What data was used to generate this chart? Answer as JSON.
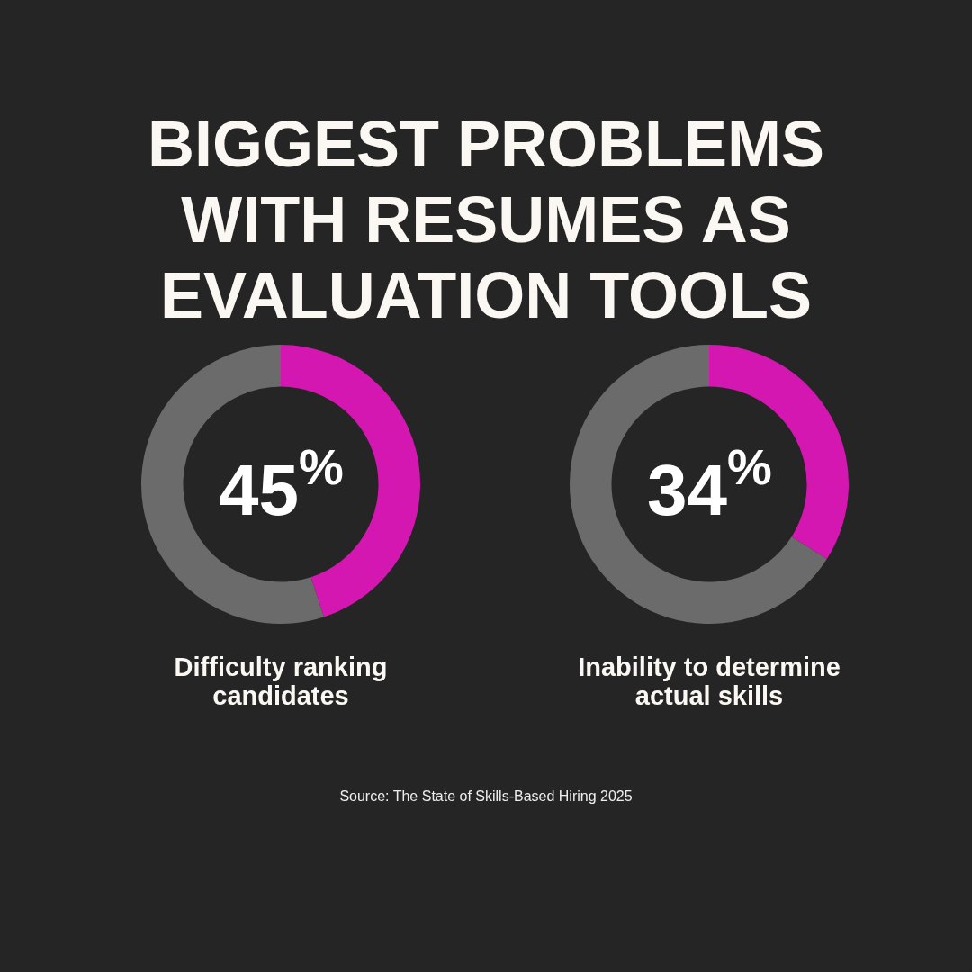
{
  "chart_data": [
    {
      "type": "donut",
      "title": "BIGGEST PROBLEMS WITH RESUMES AS EVALUATION TOOLS",
      "xlabel": "Difficulty ranking candidates",
      "categories": [
        null,
        null
      ],
      "values": [
        45,
        55
      ],
      "colors": [
        "#d417b0",
        "#6b6b6b"
      ],
      "value_labels": [
        "45$^{%}$",
        null
      ],
      "legend": false
    },
    {
      "type": "donut",
      "xlabel": "Inability to determine actual skills",
      "categories": [
        null,
        null
      ],
      "values": [
        34,
        66
      ],
      "colors": [
        "#d417b0",
        "#6b6b6b"
      ],
      "value_labels": [
        "34$^{%}$",
        null
      ],
      "legend": false,
      "annotations": [
        "Source: The State of Skills-Based Hiring 2025"
      ]
    }
  ]
}
